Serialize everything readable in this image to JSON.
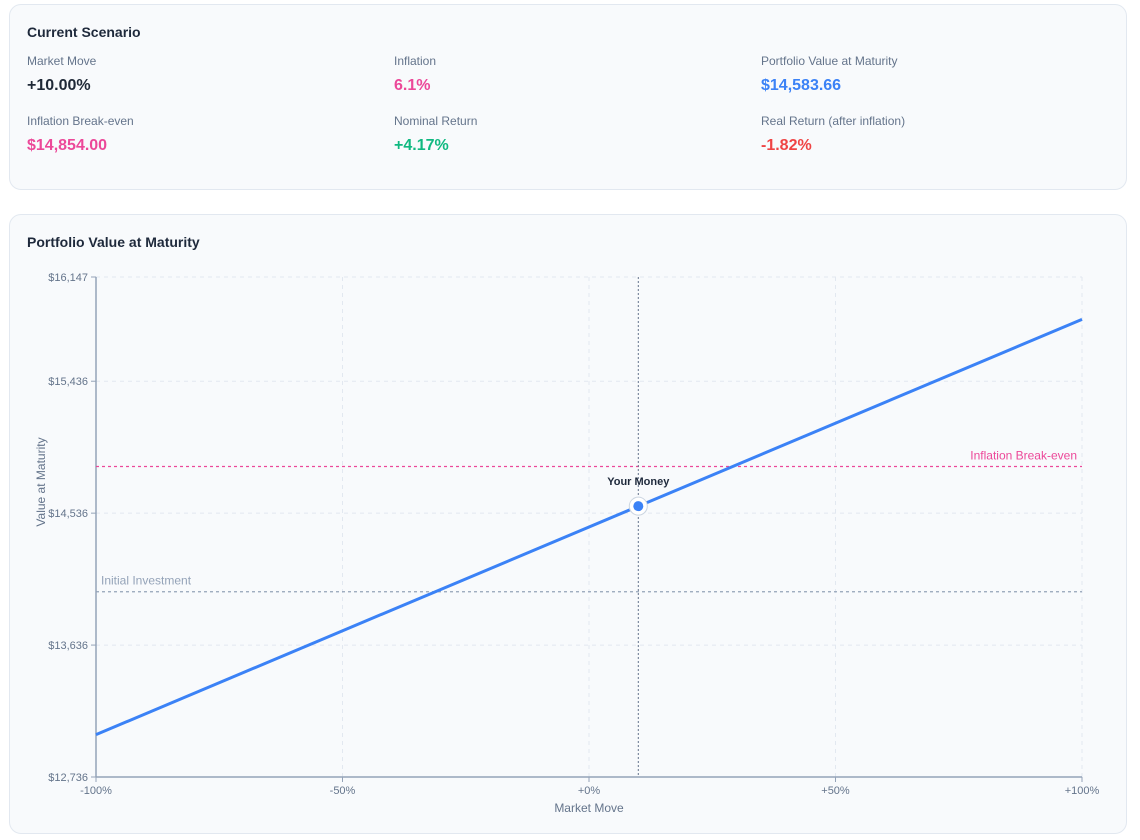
{
  "scenario": {
    "title": "Current Scenario",
    "metrics": [
      {
        "label": "Market Move",
        "value": "+10.00%",
        "color": "#1f2937"
      },
      {
        "label": "Inflation",
        "value": "6.1%",
        "color": "#ec4899"
      },
      {
        "label": "Portfolio Value at Maturity",
        "value": "$14,583.66",
        "color": "#3b82f6"
      },
      {
        "label": "Inflation Break-even",
        "value": "$14,854.00",
        "color": "#ec4899"
      },
      {
        "label": "Nominal Return",
        "value": "+4.17%",
        "color": "#10b981"
      },
      {
        "label": "Real Return (after inflation)",
        "value": "-1.82%",
        "color": "#ef4444"
      }
    ]
  },
  "chart_card": {
    "title": "Portfolio Value at Maturity"
  },
  "chart_data": {
    "type": "line",
    "title": "Portfolio Value at Maturity",
    "xlabel": "Market Move",
    "ylabel": "Value at Maturity",
    "xlim": [
      -100,
      100
    ],
    "ylim": [
      12736,
      16147
    ],
    "x_ticks": [
      -100,
      -50,
      0,
      50,
      100
    ],
    "x_tick_labels": [
      "-100%",
      "-50%",
      "+0%",
      "+50%",
      "+100%"
    ],
    "y_ticks": [
      12736,
      13636,
      14536,
      15436,
      16147
    ],
    "y_tick_labels": [
      "$12,736",
      "$13,636",
      "$14,536",
      "$15,436",
      "$16,147"
    ],
    "grid": true,
    "series": [
      {
        "x": [
          -100,
          100
        ],
        "y": [
          13025,
          15858
        ],
        "color": "#3b82f6"
      }
    ],
    "reference_lines": [
      {
        "label": "Inflation Break-even",
        "y": 14854,
        "color": "#ec4899",
        "label_position": "right"
      },
      {
        "label": "Initial Investment",
        "y": 14000,
        "color": "#94a3b8",
        "label_position": "left"
      }
    ],
    "marker": {
      "label": "Your Money",
      "x": 10,
      "y": 14583.66,
      "color": "#3b82f6"
    }
  }
}
